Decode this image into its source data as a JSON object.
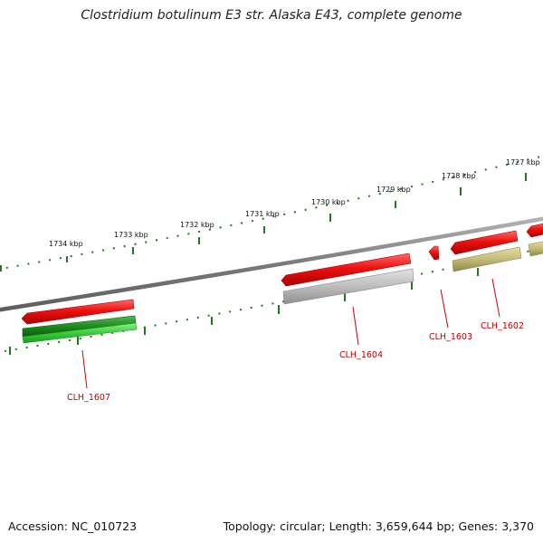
{
  "title": "Clostridium botulinum E3 str. Alaska E43, complete genome",
  "footer": {
    "accession": "Accession: NC_010723",
    "summary": "Topology: circular; Length: 3,659,644 bp; Genes: 3,370"
  },
  "colors": {
    "backbone": "#8a8a8a",
    "tick": "#1f7a1f",
    "forward_cds": "#e81010",
    "gene_label": "#c00000",
    "gray_feature": "#b8b8b8",
    "green_feature": "#3ccc3c",
    "olive_feature": "#c8c080"
  },
  "map": {
    "tick_labels": [
      {
        "text": "1734 kbp"
      },
      {
        "text": "1733 kbp"
      },
      {
        "text": "1732 kbp"
      },
      {
        "text": "1731 kbp"
      },
      {
        "text": "1730 kbp"
      },
      {
        "text": "1729 kbp"
      },
      {
        "text": "1728 kbp"
      },
      {
        "text": "1727 kbp"
      }
    ],
    "gene_labels": [
      {
        "text": "CLH_1607"
      },
      {
        "text": "CLH_1604"
      },
      {
        "text": "CLH_1603"
      },
      {
        "text": "CLH_1602"
      }
    ]
  }
}
